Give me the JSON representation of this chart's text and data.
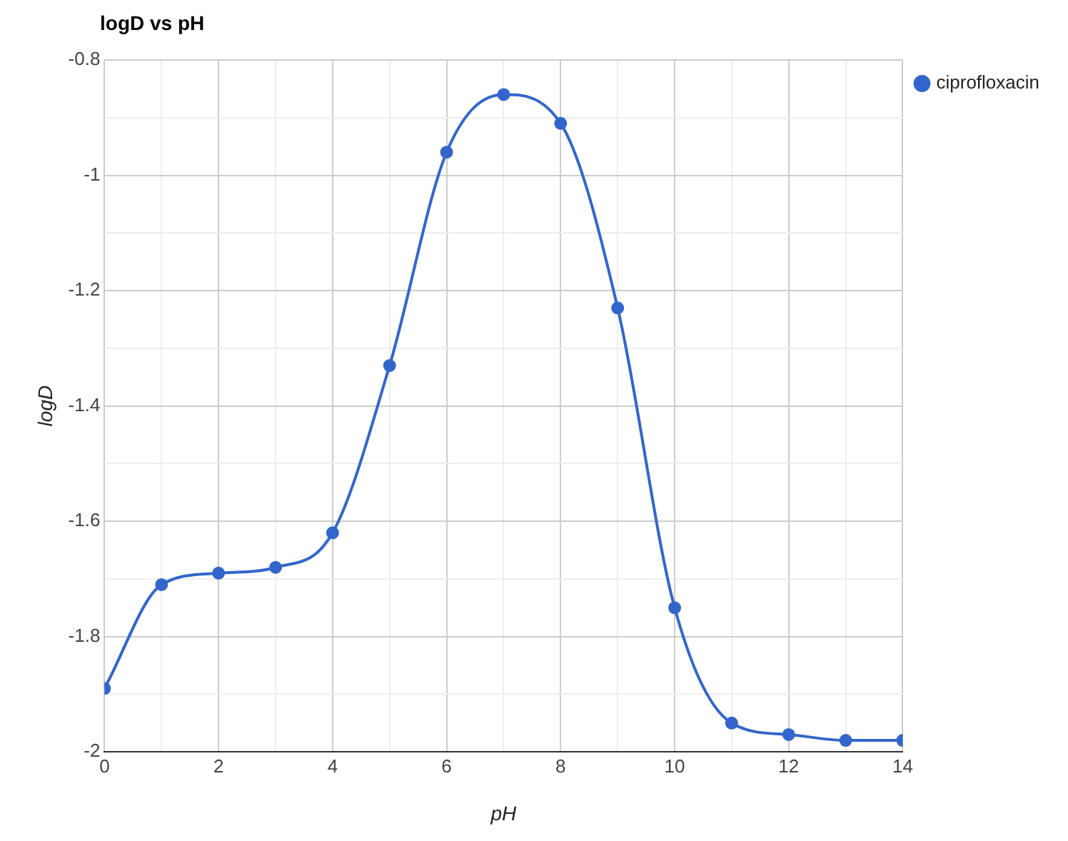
{
  "chart_data": {
    "type": "line",
    "title": "logD vs pH",
    "xlabel": "pH",
    "ylabel": "logD",
    "x": [
      0,
      1,
      2,
      3,
      4,
      5,
      6,
      7,
      8,
      9,
      10,
      11,
      12,
      13,
      14
    ],
    "series": [
      {
        "name": "ciprofloxacin",
        "color": "#3366cc",
        "values": [
          -1.89,
          -1.71,
          -1.69,
          -1.68,
          -1.62,
          -1.33,
          -0.96,
          -0.86,
          -0.91,
          -1.23,
          -1.75,
          -1.95,
          -1.97,
          -1.98,
          -1.98
        ]
      }
    ],
    "xlim": [
      0,
      14
    ],
    "xticks": [
      0,
      {
        "value": 1,
        "label": null
      },
      2,
      {
        "value": 3,
        "label": null
      },
      4,
      {
        "value": 5,
        "label": null
      },
      6,
      {
        "value": 7,
        "label": null
      },
      8,
      {
        "value": 9,
        "label": null
      },
      10,
      {
        "value": 11,
        "label": null
      },
      12,
      {
        "value": 13,
        "label": null
      },
      14
    ],
    "ylim": [
      -2,
      -0.8
    ],
    "yticks": [
      -2,
      {
        "value": -1.9,
        "label": null
      },
      -1.8,
      {
        "value": -1.7,
        "label": null
      },
      -1.6,
      {
        "value": -1.5,
        "label": null
      },
      -1.4,
      {
        "value": -1.3,
        "label": null
      },
      -1.2,
      {
        "value": -1.1,
        "label": null
      },
      -1,
      {
        "value": -0.9,
        "label": null
      },
      -0.8
    ],
    "grid": true,
    "legend": "top right",
    "marker": "circle",
    "line_style": "solid"
  }
}
